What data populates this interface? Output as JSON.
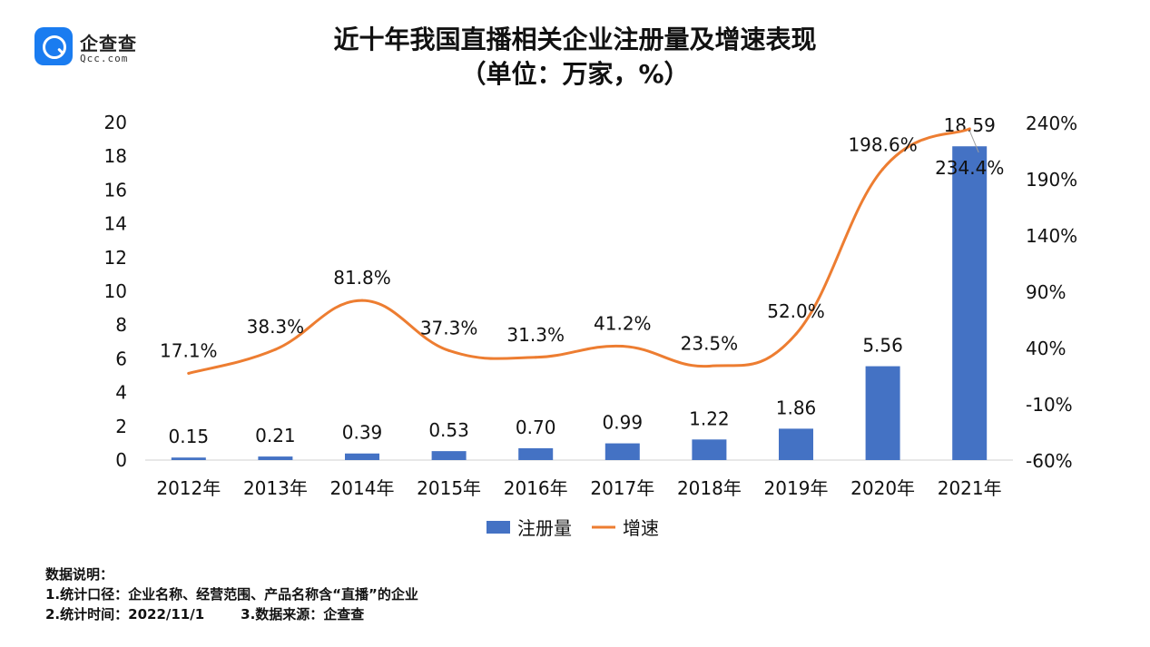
{
  "brand": {
    "name": "企查查",
    "domain": "Qcc.com",
    "color": "#1a7cf0"
  },
  "chart_data": {
    "type": "bar",
    "title": "近十年我国直播相关企业注册量及增速表现",
    "subtitle": "（单位：万家，%）",
    "categories": [
      "2012年",
      "2013年",
      "2014年",
      "2015年",
      "2016年",
      "2017年",
      "2018年",
      "2019年",
      "2020年",
      "2021年"
    ],
    "series": [
      {
        "name": "注册量",
        "type": "bar",
        "axis": "left",
        "color": "#4472c4",
        "values": [
          0.15,
          0.21,
          0.39,
          0.53,
          0.7,
          0.99,
          1.22,
          1.86,
          5.56,
          18.59
        ],
        "labels": [
          "0.15",
          "0.21",
          "0.39",
          "0.53",
          "0.70",
          "0.99",
          "1.22",
          "1.86",
          "5.56",
          "18.59"
        ]
      },
      {
        "name": "增速",
        "type": "line",
        "axis": "right",
        "color": "#ed7d31",
        "values": [
          17.1,
          38.3,
          81.8,
          37.3,
          31.3,
          41.2,
          23.5,
          52.0,
          198.6,
          234.4
        ],
        "labels": [
          "17.1%",
          "38.3%",
          "81.8%",
          "37.3%",
          "31.3%",
          "41.2%",
          "23.5%",
          "52.0%",
          "198.6%",
          "234.4%"
        ]
      }
    ],
    "y_left": {
      "min": 0,
      "max": 20,
      "ticks": [
        "0",
        "2",
        "4",
        "6",
        "8",
        "10",
        "12",
        "14",
        "16",
        "18",
        "20"
      ]
    },
    "y_right": {
      "min": -60,
      "max": 240,
      "ticks": [
        "-60%",
        "-10%",
        "40%",
        "90%",
        "140%",
        "190%",
        "240%"
      ]
    },
    "legend_position": "bottom",
    "grid": false
  },
  "notes": {
    "heading": "数据说明：",
    "line1": "1.统计口径：企业名称、经营范围、产品名称含“直播”的企业",
    "line2a": "2.统计时间：2022/11/1",
    "line2b": "3.数据来源：企查查"
  }
}
